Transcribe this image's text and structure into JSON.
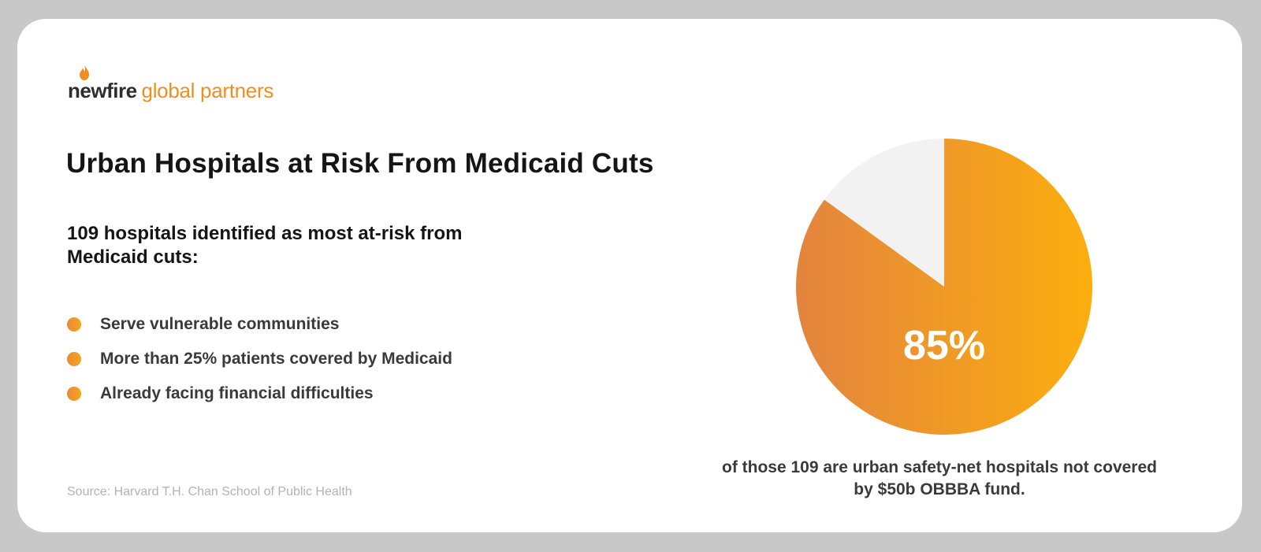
{
  "brand": {
    "name_strong": "newfire",
    "name_light": "global partners"
  },
  "title": "Urban Hospitals at Risk From Medicaid Cuts",
  "subtitle": "109 hospitals identified as most at-risk from Medicaid cuts:",
  "bullets": [
    "Serve vulnerable communities",
    "More than 25% patients covered by Medicaid",
    "Already facing financial difficulties"
  ],
  "source": "Source: Harvard T.H. Chan School of Public Health",
  "colors": {
    "accent_start": "#e3843f",
    "accent_end": "#fbae0e",
    "remainder": "#f2f2f2"
  },
  "chart_data": {
    "type": "pie",
    "slices": [
      {
        "value": 85,
        "label": "85%"
      },
      {
        "value": 15,
        "label": ""
      }
    ],
    "caption": "of those 109 are urban safety-net hospitals not covered by $50b OBBBA fund."
  }
}
